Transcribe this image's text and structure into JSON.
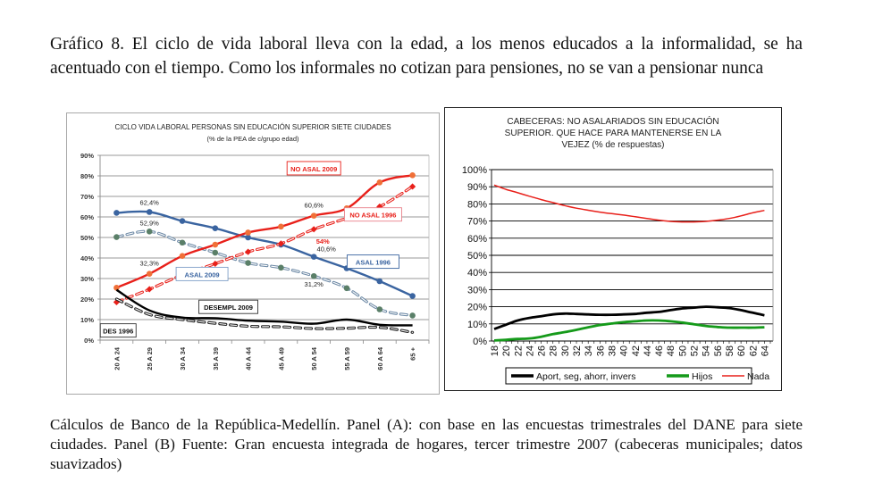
{
  "heading": "Gráfico 8. El ciclo de vida laboral lleva con la edad, a los menos educados  a la informalidad, se ha acentuado con el tiempo. Como los informales no cotizan para pensiones, no se van a pensionar nunca",
  "caption": "Cálculos de Banco de la República-Medellín. Panel (A): con base en las encuestas trimestrales del DANE para siete ciudades. Panel (B) Fuente: Gran encuesta integrada de hogares, tercer trimestre 2007 (cabeceras municipales; datos suavizados)",
  "chart_data": [
    {
      "type": "line",
      "title": "CICLO  VIDA LABORAL PERSONAS SIN EDUCACIÓN SUPERIOR  SIETE CIUDADES",
      "subtitle": "(% de la PEA de c/grupo edad)",
      "xlabel": "",
      "ylabel": "",
      "ylim": [
        0,
        90
      ],
      "yticks": [
        "0%",
        "10%",
        "20%",
        "30%",
        "40%",
        "50%",
        "60%",
        "70%",
        "80%",
        "90%"
      ],
      "grid": true,
      "categories": [
        "20 A 24",
        "25 A 29",
        "30 A 34",
        "35 A 39",
        "40 A 44",
        "45 A 49",
        "50 A 54",
        "55 A 59",
        "60 A 64",
        "65 +"
      ],
      "series": [
        {
          "name": "ASAL 1996",
          "style": "solid",
          "color": "#3a64a0",
          "marker": "dot",
          "values": [
            62.0,
            62.4,
            58.0,
            54.5,
            50.0,
            46.5,
            40.6,
            35.0,
            28.7,
            21.5
          ]
        },
        {
          "name": "ASAL 2009",
          "style": "dashed",
          "color": "#6e8aa6",
          "marker_color": "#5a7f68",
          "marker": "dot",
          "values": [
            50.2,
            52.9,
            47.5,
            42.6,
            37.6,
            35.3,
            31.2,
            25.3,
            15.0,
            12.0
          ]
        },
        {
          "name": "NO ASAL 2009",
          "style": "solid",
          "color": "#e8201a",
          "marker_color": "#f07038",
          "marker": "dot",
          "values": [
            25.5,
            32.3,
            41.0,
            46.5,
            52.4,
            55.3,
            60.6,
            64.2,
            76.8,
            80.3
          ]
        },
        {
          "name": "NO ASAL 1996",
          "style": "dashed",
          "color": "#e8201a",
          "marker": "diamond",
          "values": [
            18.5,
            24.8,
            31.8,
            37.2,
            43.0,
            47.0,
            54.0,
            59.4,
            65.0,
            74.8
          ]
        },
        {
          "name": "DESEMPL 2009",
          "style": "solid",
          "color": "#000000",
          "marker": "none",
          "values": [
            24.5,
            14.5,
            11.0,
            10.7,
            9.5,
            9.0,
            8.0,
            10.0,
            7.5,
            7.2
          ]
        },
        {
          "name": "DES 1996",
          "style": "dashed",
          "color": "#222222",
          "marker": "none",
          "values": [
            20.0,
            12.5,
            10.0,
            8.2,
            6.8,
            6.5,
            5.6,
            5.8,
            6.2,
            3.8
          ]
        }
      ],
      "data_labels": [
        {
          "series": "ASAL 1996",
          "category": "25 A 29",
          "text": "62,4%"
        },
        {
          "series": "ASAL 2009",
          "category": "25 A 29",
          "text": "52,9%"
        },
        {
          "series": "NO ASAL 2009",
          "category": "25 A 29",
          "text": "32,3%"
        },
        {
          "series": "NO ASAL 2009",
          "category": "50 A 54",
          "text": "60,6%"
        },
        {
          "series": "NO ASAL 1996",
          "category": "50 A 54",
          "text": "54%"
        },
        {
          "series": "ASAL 1996",
          "category": "50 A 54",
          "text": "40,6%"
        },
        {
          "series": "ASAL 2009",
          "category": "50 A 54",
          "text": "31,2%"
        }
      ],
      "legend": "inline-labels"
    },
    {
      "type": "line",
      "title": "CABECERAS: NO ASALARIADOS SIN EDUCACIÓN SUPERIOR. QUE HACE PARA MANTENERSE EN LA VEJEZ (% de respuestas)",
      "xlabel": "",
      "ylabel": "",
      "ylim": [
        0,
        100
      ],
      "yticks": [
        "0%",
        "10%",
        "20%",
        "30%",
        "40%",
        "50%",
        "60%",
        "70%",
        "80%",
        "90%",
        "100%"
      ],
      "grid": true,
      "x": [
        18,
        20,
        22,
        24,
        26,
        28,
        30,
        32,
        34,
        36,
        38,
        40,
        42,
        44,
        46,
        48,
        50,
        52,
        54,
        56,
        58,
        60,
        62,
        64
      ],
      "xlim": [
        18,
        65
      ],
      "series": [
        {
          "name": "Aport, seg, ahorr, invers",
          "color": "#000000",
          "values": [
            7.0,
            9.5,
            12.0,
            13.5,
            14.5,
            15.5,
            16.0,
            15.8,
            15.5,
            15.3,
            15.3,
            15.5,
            15.8,
            16.5,
            17.0,
            18.0,
            19.0,
            19.5,
            20.0,
            19.7,
            19.2,
            18.0,
            16.5,
            15.0
          ]
        },
        {
          "name": "Hijos",
          "color": "#159a1a",
          "values": [
            0.3,
            0.7,
            1.2,
            1.5,
            2.5,
            4.0,
            5.2,
            6.5,
            8.0,
            9.3,
            10.2,
            11.0,
            11.5,
            12.0,
            12.0,
            11.5,
            10.8,
            9.8,
            8.8,
            8.2,
            7.8,
            7.8,
            7.8,
            8.0
          ]
        },
        {
          "name": "Nada",
          "color": "#e8201a",
          "values": [
            91.0,
            88.5,
            86.5,
            84.5,
            82.5,
            80.8,
            79.0,
            77.5,
            76.3,
            75.2,
            74.3,
            73.5,
            72.5,
            71.5,
            70.5,
            69.8,
            69.5,
            69.5,
            69.8,
            70.5,
            71.5,
            73.0,
            74.8,
            76.2
          ]
        }
      ],
      "legend": "bottom"
    }
  ]
}
